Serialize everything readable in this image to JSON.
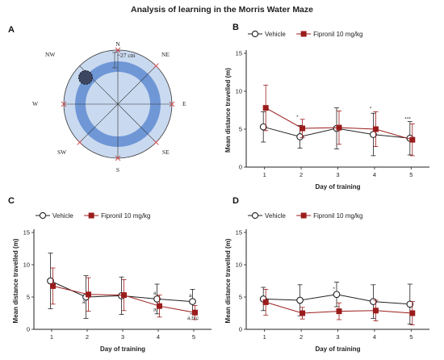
{
  "figure_title": "Analysis of learning in the Morris Water Maze",
  "colors": {
    "vehicle": "#222222",
    "fipronil": "#9b1c1c",
    "pool_fill": "#c9d9ef",
    "ring": "#6f97d6",
    "marker": "#d04848"
  },
  "panel_a": {
    "letter": "A",
    "directions": {
      "n": "N",
      "ne": "NE",
      "e": "E",
      "se": "SE",
      "s": "S",
      "sw": "SW",
      "w": "W",
      "nw": "NW"
    },
    "distance_label": "~27 cm"
  },
  "chart_data": [
    {
      "panel": "B",
      "type": "line",
      "xlabel": "Day of training",
      "ylabel": "Mean distance travelled (m)",
      "categories": [
        "1",
        "2",
        "3",
        "4",
        "5"
      ],
      "ylim": [
        0,
        15
      ],
      "yticks": [
        0,
        5,
        10,
        15
      ],
      "legend": "top",
      "series": [
        {
          "name": "Vehicle",
          "marker": "circle",
          "values": [
            5.3,
            4.0,
            5.1,
            4.3,
            3.8
          ],
          "error": [
            2.0,
            1.5,
            2.7,
            2.8,
            2.2
          ]
        },
        {
          "name": "Fipronil 10 mg/kg",
          "marker": "square",
          "values": [
            7.8,
            5.1,
            5.2,
            5.0,
            3.6
          ],
          "error": [
            3.0,
            1.2,
            2.2,
            2.3,
            2.1
          ]
        }
      ],
      "annotations": [
        {
          "x": "2",
          "y": 6.4,
          "text": "*"
        },
        {
          "x": "4",
          "y": 7.5,
          "text": "*"
        },
        {
          "x": "5",
          "y": 6.1,
          "text": "***"
        }
      ]
    },
    {
      "panel": "C",
      "type": "line",
      "xlabel": "Day of training",
      "ylabel": "Mean distance travelled (m)",
      "categories": [
        "1",
        "2",
        "3",
        "4",
        "5"
      ],
      "ylim": [
        0,
        15
      ],
      "yticks": [
        0,
        5,
        10,
        15
      ],
      "legend": "top",
      "series": [
        {
          "name": "Vehicle",
          "marker": "circle",
          "values": [
            7.5,
            5.0,
            5.2,
            4.7,
            4.3
          ],
          "error": [
            4.3,
            3.3,
            2.9,
            2.3,
            1.9
          ]
        },
        {
          "name": "Fipronil 10 mg/kg",
          "marker": "square",
          "values": [
            6.7,
            5.4,
            5.3,
            3.6,
            2.6
          ],
          "error": [
            2.8,
            2.6,
            2.4,
            1.7,
            1.1
          ]
        }
      ],
      "annotations": [
        {
          "x": "2",
          "y": 4.0,
          "text": "a"
        },
        {
          "x": "4",
          "y": 5.4,
          "text": "a"
        },
        {
          "x": "4",
          "y": 2.8,
          "text": "a"
        },
        {
          "x": "5",
          "y": 5.0,
          "text": "a"
        },
        {
          "x": "5",
          "y": 1.5,
          "text": "a,b,c"
        }
      ]
    },
    {
      "panel": "D",
      "type": "line",
      "xlabel": "Day of training",
      "ylabel": "Mean distance travelled (m)",
      "categories": [
        "1",
        "2",
        "3",
        "4",
        "5"
      ],
      "ylim": [
        0,
        15
      ],
      "yticks": [
        0,
        5,
        10,
        15
      ],
      "legend": "top",
      "series": [
        {
          "name": "Vehicle",
          "marker": "circle",
          "values": [
            4.7,
            4.5,
            5.4,
            4.3,
            3.9
          ],
          "error": [
            1.8,
            2.4,
            1.9,
            2.6,
            3.1
          ]
        },
        {
          "name": "Fipronil 10 mg/kg",
          "marker": "square",
          "values": [
            4.2,
            2.5,
            2.8,
            2.9,
            2.5
          ],
          "error": [
            2.0,
            0.9,
            1.3,
            1.6,
            1.8
          ]
        }
      ],
      "annotations": [
        {
          "x": "3",
          "y": 6.0,
          "text": "*"
        }
      ]
    }
  ]
}
